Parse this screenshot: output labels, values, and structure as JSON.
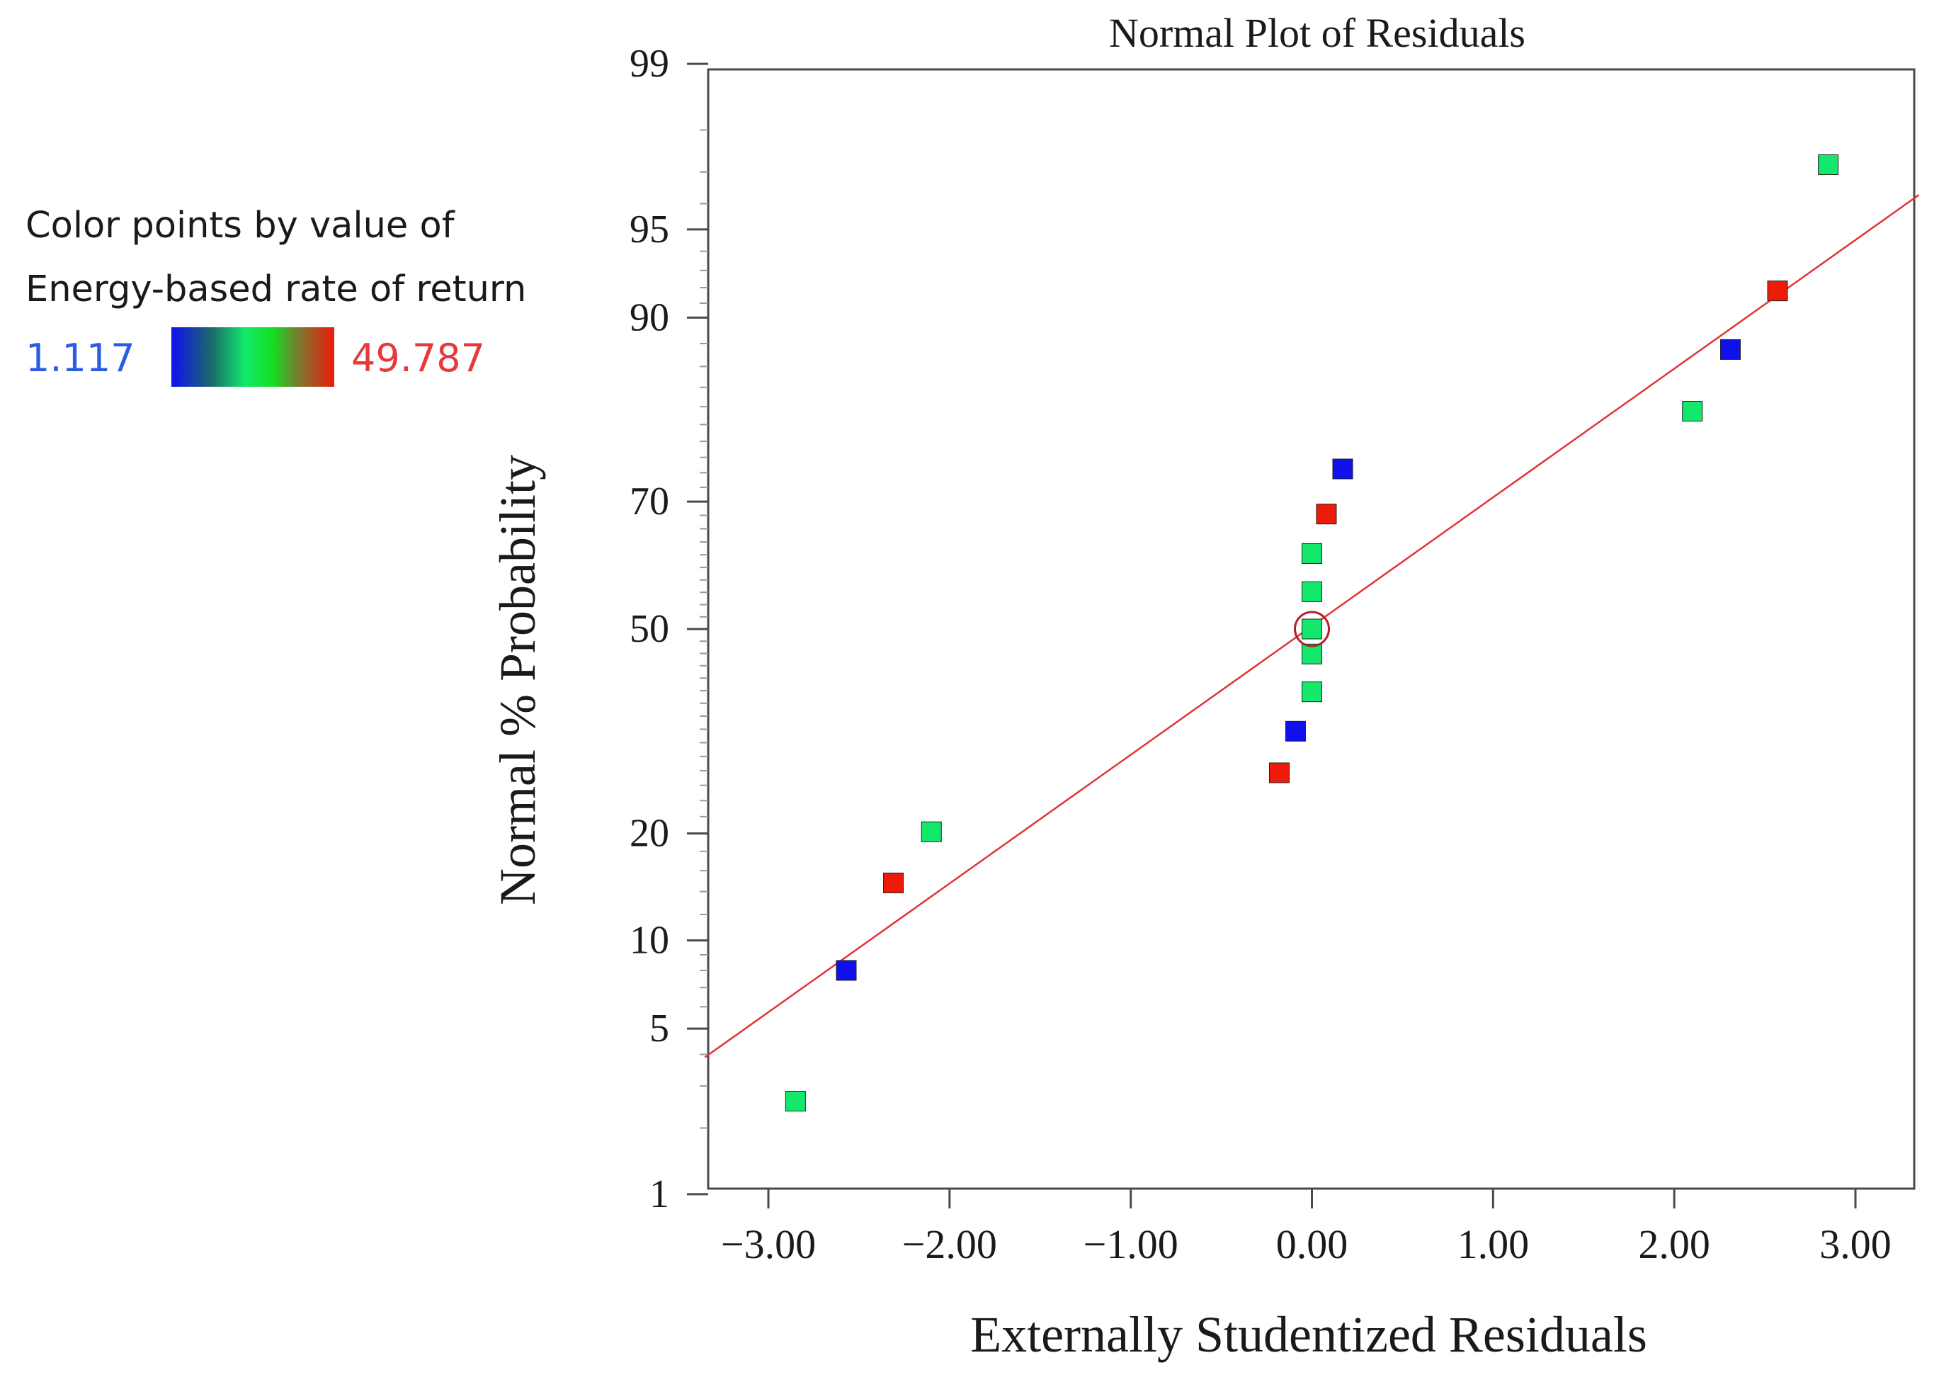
{
  "chart_data": {
    "type": "scatter",
    "title": "Normal Plot of Residuals",
    "xlabel": "Externally Studentized Residuals",
    "ylabel": "Normal % Probability",
    "xlim": [
      -3.35,
      3.35
    ],
    "x_ticks": [
      -3.0,
      -2.0,
      -1.0,
      0.0,
      1.0,
      2.0,
      3.0
    ],
    "x_tick_labels": [
      "−3.00",
      "−2.00",
      "−1.00",
      "0.00",
      "1.00",
      "2.00",
      "3.00"
    ],
    "y_scale": "normal-probability",
    "y_ticks": [
      1,
      5,
      10,
      20,
      50,
      70,
      90,
      95,
      99
    ],
    "y_tick_labels": [
      "1",
      "5",
      "10",
      "20",
      "50",
      "70",
      "90",
      "95",
      "99"
    ],
    "legend": {
      "title_line1": "Color points by value of",
      "title_line2": "Energy-based rate of return",
      "min_label": "1.117",
      "max_label": "49.787",
      "min_value": 1.117,
      "max_value": 49.787
    },
    "colors": {
      "blue": "#1010ee",
      "green": "#14e86c",
      "red": "#ee1a0a",
      "fit_line": "#e0343a",
      "axis": "#4a4a4a",
      "min_label": "#2a5de0",
      "max_label": "#e63a3a"
    },
    "fit_line": {
      "x_start": -3.35,
      "y_start": 3.9,
      "x_end": 3.35,
      "y_end": 96.3
    },
    "points": [
      {
        "x": -2.85,
        "y": 2.6,
        "color": "green"
      },
      {
        "x": -2.57,
        "y": 8.0,
        "color": "blue"
      },
      {
        "x": -2.31,
        "y": 14.8,
        "color": "red"
      },
      {
        "x": -2.1,
        "y": 20.2,
        "color": "green"
      },
      {
        "x": -0.18,
        "y": 27.7,
        "color": "red"
      },
      {
        "x": -0.09,
        "y": 33.7,
        "color": "blue"
      },
      {
        "x": 0.0,
        "y": 39.8,
        "color": "green"
      },
      {
        "x": 0.0,
        "y": 45.9,
        "color": "green"
      },
      {
        "x": 0.0,
        "y": 50.0,
        "color": "green"
      },
      {
        "x": 0.0,
        "y": 56.1,
        "color": "green"
      },
      {
        "x": 0.0,
        "y": 62.2,
        "color": "green"
      },
      {
        "x": 0.08,
        "y": 68.2,
        "color": "red"
      },
      {
        "x": 0.17,
        "y": 74.5,
        "color": "blue"
      },
      {
        "x": 2.1,
        "y": 81.5,
        "color": "green"
      },
      {
        "x": 2.31,
        "y": 87.5,
        "color": "blue"
      },
      {
        "x": 2.57,
        "y": 91.8,
        "color": "red"
      },
      {
        "x": 2.85,
        "y": 97.2,
        "color": "green"
      }
    ],
    "highlighted_point": {
      "x": 0.0,
      "y": 50.0
    }
  }
}
